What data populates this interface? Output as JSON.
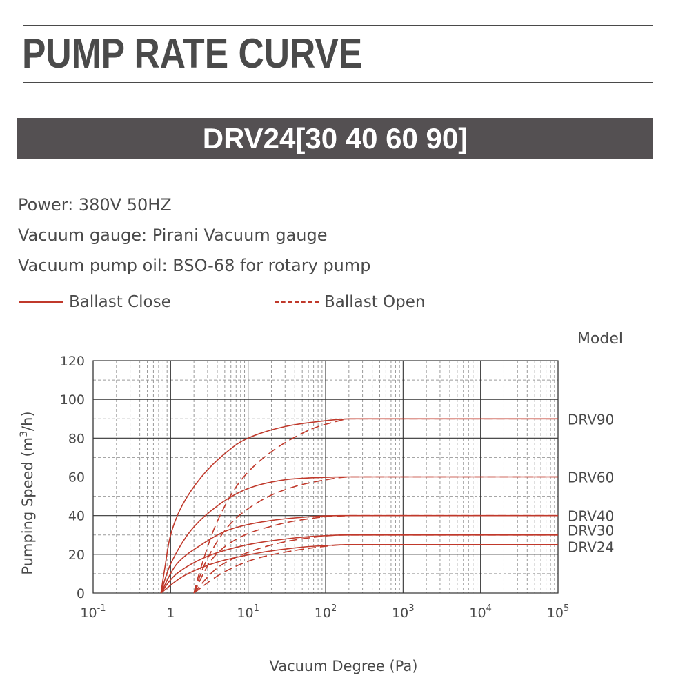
{
  "header": {
    "title": "PUMP RATE CURVE",
    "model_banner": "DRV24[30 40 60 90]"
  },
  "specs": {
    "power": "Power: 380V 50HZ",
    "gauge": "Vacuum gauge: Pirani Vacuum gauge",
    "oil": "Vacuum pump oil: BSO-68 for rotary pump"
  },
  "legend": {
    "close": "Ballast Close",
    "open": "Ballast Open"
  },
  "colors": {
    "curve": "#c0392b",
    "text": "#4a4a4a",
    "banner": "#545052"
  },
  "chart_data": {
    "type": "line",
    "xlabel": "Vacuum Degree (Pa)",
    "ylabel_prefix": "Pumping Speed (m",
    "ylabel_sup": "3",
    "ylabel_suffix": "/h)",
    "model_label": "Model",
    "xscale": "log",
    "xlim": [
      0.1,
      100000
    ],
    "ylim": [
      0,
      120
    ],
    "yticks": [
      0,
      20,
      40,
      60,
      80,
      100,
      120
    ],
    "xticks": [
      {
        "value": 0.1,
        "base": "10",
        "exp": "-1"
      },
      {
        "value": 1,
        "base": "1",
        "exp": ""
      },
      {
        "value": 10,
        "base": "10",
        "exp": "1"
      },
      {
        "value": 100,
        "base": "10",
        "exp": "2"
      },
      {
        "value": 1000,
        "base": "10",
        "exp": "3"
      },
      {
        "value": 10000,
        "base": "10",
        "exp": "4"
      },
      {
        "value": 100000,
        "base": "10",
        "exp": "5"
      }
    ],
    "grid": true,
    "legend_position": "top",
    "series": [
      {
        "name": "DRV90",
        "ballast": "close",
        "x": [
          0.75,
          0.85,
          1.0,
          1.4,
          2.5,
          5,
          10,
          30,
          100,
          200,
          100000
        ],
        "y": [
          0,
          14,
          30,
          45,
          60,
          72,
          80,
          86,
          89,
          90,
          90
        ]
      },
      {
        "name": "DRV90",
        "ballast": "open",
        "x": [
          2.0,
          2.5,
          4,
          8,
          20,
          60,
          150,
          200,
          100000
        ],
        "y": [
          0,
          14,
          37,
          58,
          73,
          84,
          89,
          90,
          90
        ]
      },
      {
        "name": "DRV60",
        "ballast": "close",
        "x": [
          0.75,
          1.0,
          1.8,
          4,
          10,
          30,
          100,
          200,
          100000
        ],
        "y": [
          0,
          15,
          32,
          45,
          54,
          58.5,
          59.8,
          60,
          60
        ]
      },
      {
        "name": "DRV60",
        "ballast": "open",
        "x": [
          2.0,
          3,
          6,
          15,
          40,
          120,
          200,
          100000
        ],
        "y": [
          0,
          18,
          36,
          48,
          55,
          59,
          60,
          60
        ]
      },
      {
        "name": "DRV40",
        "ballast": "close",
        "x": [
          0.75,
          1.2,
          2.5,
          6,
          20,
          80,
          200,
          100000
        ],
        "y": [
          0,
          15,
          25,
          33,
          37.5,
          39.7,
          40,
          40
        ]
      },
      {
        "name": "DRV40",
        "ballast": "open",
        "x": [
          2.0,
          3.5,
          8,
          25,
          80,
          200,
          100000
        ],
        "y": [
          0,
          18,
          29,
          35.5,
          39,
          40,
          40
        ]
      },
      {
        "name": "DRV30",
        "ballast": "close",
        "x": [
          0.75,
          1.2,
          3,
          10,
          40,
          120,
          200,
          100000
        ],
        "y": [
          0,
          10,
          19,
          25,
          28.5,
          29.8,
          30,
          30
        ]
      },
      {
        "name": "DRV30",
        "ballast": "open",
        "x": [
          2.0,
          4,
          10,
          30,
          100,
          200,
          100000
        ],
        "y": [
          0,
          13,
          21,
          26.5,
          29.5,
          30,
          30
        ]
      },
      {
        "name": "DRV24",
        "ballast": "close",
        "x": [
          0.75,
          1.5,
          4,
          15,
          50,
          150,
          200,
          100000
        ],
        "y": [
          0,
          9,
          16,
          21,
          23.7,
          24.9,
          25,
          25
        ]
      },
      {
        "name": "DRV24",
        "ballast": "open",
        "x": [
          2.0,
          4.5,
          12,
          40,
          120,
          200,
          100000
        ],
        "y": [
          0,
          10,
          17.5,
          22,
          24.5,
          25,
          25
        ]
      }
    ],
    "end_labels": [
      {
        "text": "DRV90",
        "y": 90
      },
      {
        "text": "DRV60",
        "y": 60
      },
      {
        "text": "DRV40",
        "y": 40
      },
      {
        "text": "DRV30",
        "y": 32.5
      },
      {
        "text": "DRV24",
        "y": 24
      }
    ]
  }
}
